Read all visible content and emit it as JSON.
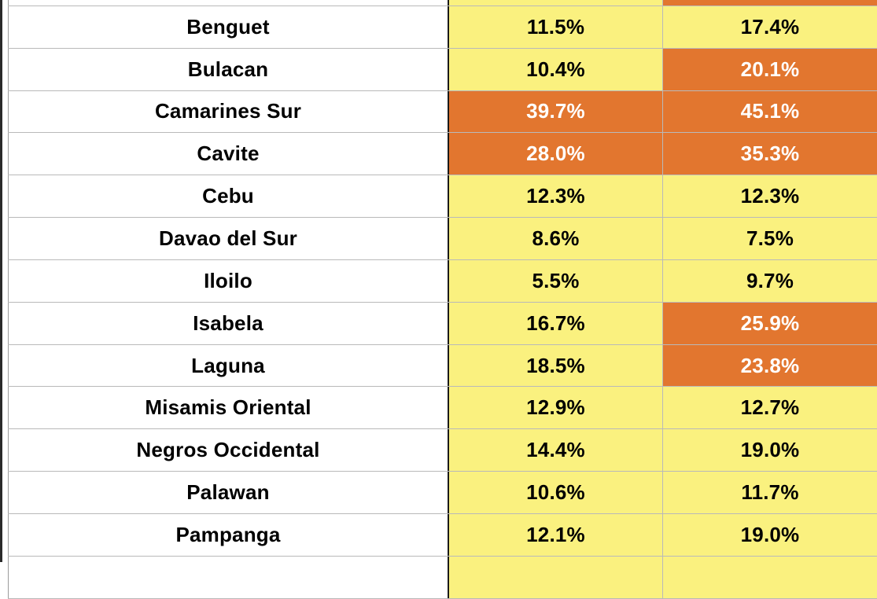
{
  "colors": {
    "low": "#faf17f",
    "high": "#e2762f",
    "grid": "#b9b9b9"
  },
  "rows": [
    {
      "name": "",
      "v1": "",
      "v2": "",
      "v1_level": "low",
      "v2_level": "high"
    },
    {
      "name": "Benguet",
      "v1": "11.5%",
      "v2": "17.4%",
      "v1_level": "low",
      "v2_level": "low"
    },
    {
      "name": "Bulacan",
      "v1": "10.4%",
      "v2": "20.1%",
      "v1_level": "low",
      "v2_level": "high"
    },
    {
      "name": "Camarines Sur",
      "v1": "39.7%",
      "v2": "45.1%",
      "v1_level": "high",
      "v2_level": "high"
    },
    {
      "name": "Cavite",
      "v1": "28.0%",
      "v2": "35.3%",
      "v1_level": "high",
      "v2_level": "high"
    },
    {
      "name": "Cebu",
      "v1": "12.3%",
      "v2": "12.3%",
      "v1_level": "low",
      "v2_level": "low"
    },
    {
      "name": "Davao del Sur",
      "v1": "8.6%",
      "v2": "7.5%",
      "v1_level": "low",
      "v2_level": "low"
    },
    {
      "name": "Iloilo",
      "v1": "5.5%",
      "v2": "9.7%",
      "v1_level": "low",
      "v2_level": "low"
    },
    {
      "name": "Isabela",
      "v1": "16.7%",
      "v2": "25.9%",
      "v1_level": "low",
      "v2_level": "high"
    },
    {
      "name": "Laguna",
      "v1": "18.5%",
      "v2": "23.8%",
      "v1_level": "low",
      "v2_level": "high"
    },
    {
      "name": "Misamis Oriental",
      "v1": "12.9%",
      "v2": "12.7%",
      "v1_level": "low",
      "v2_level": "low"
    },
    {
      "name": "Negros Occidental",
      "v1": "14.4%",
      "v2": "19.0%",
      "v1_level": "low",
      "v2_level": "low"
    },
    {
      "name": "Palawan",
      "v1": "10.6%",
      "v2": "11.7%",
      "v1_level": "low",
      "v2_level": "low"
    },
    {
      "name": "Pampanga",
      "v1": "12.1%",
      "v2": "19.0%",
      "v1_level": "low",
      "v2_level": "low"
    },
    {
      "name": "",
      "v1": "",
      "v2": "",
      "v1_level": "low",
      "v2_level": "low"
    }
  ]
}
